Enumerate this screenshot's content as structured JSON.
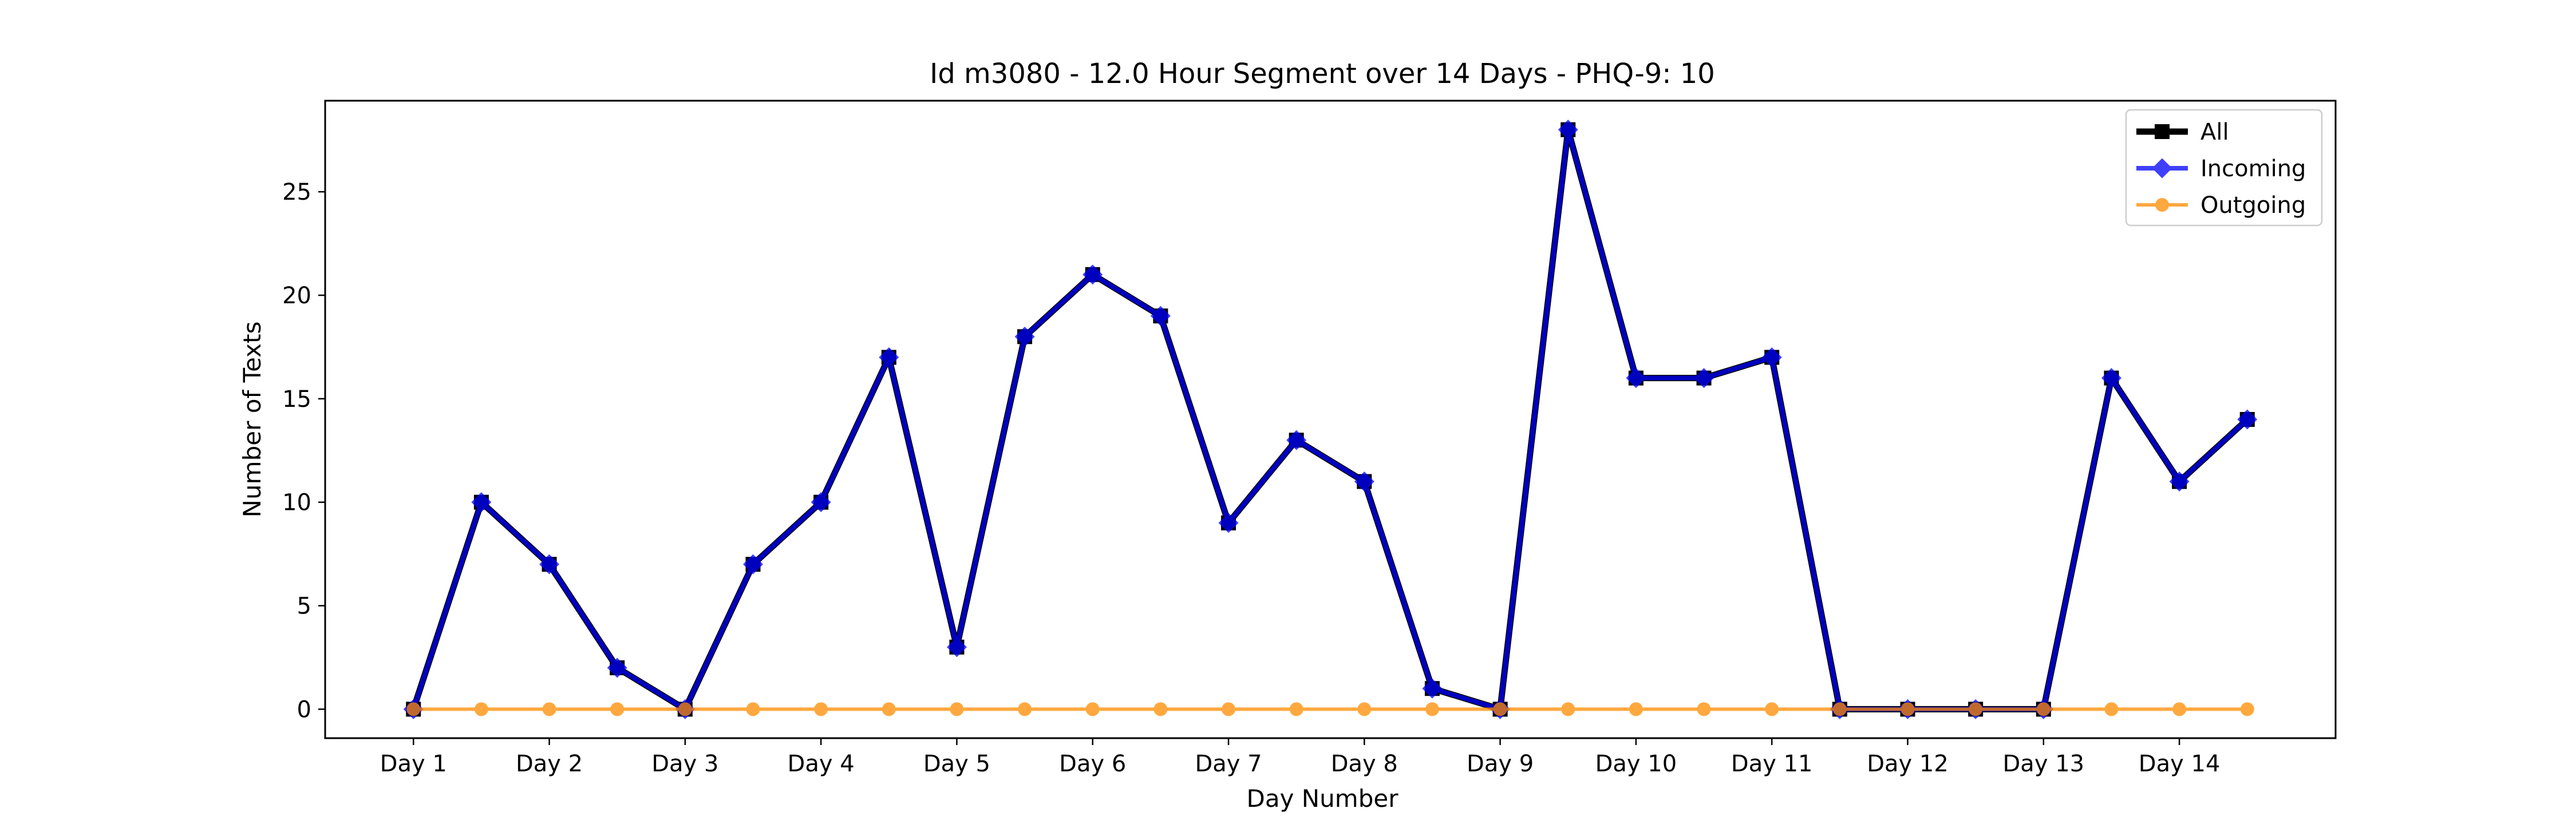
{
  "chart_data": {
    "type": "line",
    "title": "Id m3080 - 12.0 Hour Segment over 14 Days - PHQ-9: 10",
    "xlabel": "Day Number",
    "ylabel": "Number of Texts",
    "x_tick_labels": [
      "Day 1",
      "Day 2",
      "Day 3",
      "Day 4",
      "Day 5",
      "Day 6",
      "Day 7",
      "Day 8",
      "Day 9",
      "Day 10",
      "Day 11",
      "Day 12",
      "Day 13",
      "Day 14"
    ],
    "y_ticks": [
      0,
      5,
      10,
      15,
      20,
      25
    ],
    "ylim": [
      -1.4,
      29.4
    ],
    "xlim": [
      0.35,
      15.15
    ],
    "x": [
      1,
      1.5,
      2,
      2.5,
      3,
      3.5,
      4,
      4.5,
      5,
      5.5,
      6,
      6.5,
      7,
      7.5,
      8,
      8.5,
      9,
      9.5,
      10,
      10.5,
      11,
      11.5,
      12,
      12.5,
      13,
      13.5,
      14,
      14.5
    ],
    "legend_position": "top-right",
    "grid": false,
    "series": [
      {
        "name": "All",
        "color": "#000000",
        "marker": "square",
        "values": [
          0,
          10,
          7,
          2,
          0,
          7,
          10,
          17,
          3,
          18,
          21,
          19,
          9,
          13,
          11,
          1,
          0,
          28,
          16,
          16,
          17,
          0,
          0,
          0,
          0,
          16,
          11,
          14
        ]
      },
      {
        "name": "Incoming",
        "color": "#0000ff",
        "marker": "diamond",
        "values": [
          0,
          10,
          7,
          2,
          0,
          7,
          10,
          17,
          3,
          18,
          21,
          19,
          9,
          13,
          11,
          1,
          0,
          28,
          16,
          16,
          17,
          0,
          0,
          0,
          0,
          16,
          11,
          14
        ]
      },
      {
        "name": "Outgoing",
        "color": "#ff8c00",
        "marker": "circle",
        "values": [
          0,
          0,
          0,
          0,
          0,
          0,
          0,
          0,
          0,
          0,
          0,
          0,
          0,
          0,
          0,
          0,
          0,
          0,
          0,
          0,
          0,
          0,
          0,
          0,
          0,
          0,
          0,
          0
        ]
      }
    ]
  }
}
